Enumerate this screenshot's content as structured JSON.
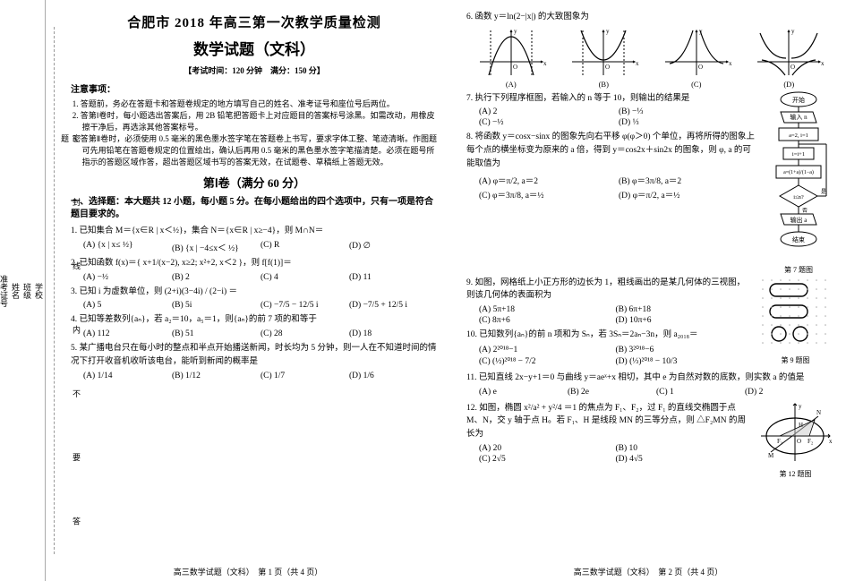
{
  "header": {
    "title_line1": "合肥市 2018 年高三第一次教学质量检测",
    "title_line2": "数学试题（文科）",
    "exam_info": "【考试时间：120 分钟　满分：150 分】"
  },
  "left_margin": {
    "fields": [
      "学校",
      "班级",
      "姓名",
      "准考证号"
    ],
    "seal_notes": [
      "密",
      "封",
      "线",
      "内",
      "不",
      "要",
      "答",
      "题"
    ]
  },
  "notice": {
    "title": "注意事项：",
    "items": [
      "1. 答题前，务必在答题卡和答题卷规定的地方填写自己的姓名、准考证号和座位号后两位。",
      "2. 答第Ⅰ卷时，每小题选出答案后，用 2B 铅笔把答题卡上对应题目的答案标号涂黑。如需改动，用橡皮擦干净后，再选涂其他答案标号。",
      "3. 答第Ⅱ卷时，必须使用 0.5 毫米的黑色墨水签字笔在答题卷上书写，要求字体工整、笔迹清晰。作图题可先用铅笔在答题卷规定的位置绘出，确认后再用 0.5 毫米的黑色墨水签字笔描清楚。必须在题号所指示的答题区域作答，超出答题区域书写的答案无效，在试题卷、草稿纸上答题无效。"
    ]
  },
  "section1": {
    "title": "第Ⅰ卷（满分 60 分）",
    "sub": "一、选择题：本大题共 12 小题，每小题 5 分。在每小题给出的四个选项中，只有一项是符合题目要求的。"
  },
  "questions_left": [
    {
      "n": "1.",
      "text": "已知集合 M＝{x∈R | x＜½}，集合 N＝{x∈R | x≥−4}，则 M∩N＝",
      "opts": [
        "(A) {x | x≤ ½}",
        "(B) {x | −4≤x＜ ½}",
        "(C) R",
        "(D) ∅"
      ],
      "cols": 4
    },
    {
      "n": "2.",
      "text": "已知函数 f(x)＝{ x+1/(x−2),  x≥2;  x²+2,  x＜2 }，则 f[f(1)]＝",
      "opts": [
        "(A) −½",
        "(B) 2",
        "(C) 4",
        "(D) 11"
      ],
      "cols": 4
    },
    {
      "n": "3.",
      "text": "已知 i 为虚数单位，则 (2+i)(3−4i) / (2−i) ＝",
      "opts": [
        "(A) 5",
        "(B) 5i",
        "(C) −7/5 − 12/5 i",
        "(D) −7/5 + 12/5 i"
      ],
      "cols": 4
    },
    {
      "n": "4.",
      "text": "已知等差数列{aₙ}，若 a₂＝10，a₅＝1，则{aₙ}的前 7 项的和等于",
      "opts": [
        "(A) 112",
        "(B) 51",
        "(C) 28",
        "(D) 18"
      ],
      "cols": 4
    },
    {
      "n": "5.",
      "text": "某广播电台只在每小时的整点和半点开始播送新闻，时长均为 5 分钟，则一人在不知道时间的情况下打开收音机收听该电台，能听到新闻的概率是",
      "opts": [
        "(A) 1/14",
        "(B) 1/12",
        "(C) 1/7",
        "(D) 1/6"
      ],
      "cols": 4
    }
  ],
  "questions_right": [
    {
      "n": "6.",
      "text": "函数 y＝ln(2−|x|) 的大致图象为",
      "graph_labels": [
        "(A)",
        "(B)",
        "(C)",
        "(D)"
      ]
    },
    {
      "n": "7.",
      "text": "执行下列程序框图，若输入的 n 等于 10，则输出的结果是",
      "opts": [
        "(A) 2",
        "(B) −⅓",
        "(C) −½",
        "(D) ⅓"
      ],
      "cols": 2,
      "flowchart": {
        "nodes": [
          "开始",
          "输入 n",
          "a＝2, i＝1",
          "i＝i+1",
          "a＝(1+a)/(1−a)",
          "i≤n?",
          "输出 a",
          "结束"
        ],
        "edges": [
          "是",
          "否"
        ]
      },
      "caption": "第 7 题图"
    },
    {
      "n": "8.",
      "text": "将函数 y＝cosx−sinx 的图象先向右平移 φ(φ＞0) 个单位，再将所得的图象上每个点的横坐标变为原来的 a 倍，得到 y＝cos2x＋sin2x 的图象，则 φ, a 的可能取值为",
      "opts": [
        "(A) φ＝π/2, a＝2",
        "(B) φ＝3π/8, a＝2",
        "(C) φ＝3π/8, a＝½",
        "(D) φ＝π/2, a＝½"
      ],
      "cols": 2
    },
    {
      "n": "9.",
      "text": "如图，网格纸上小正方形的边长为 1，粗线画出的是某几何体的三视图，则该几何体的表面积为",
      "opts": [
        "(A) 5π+18",
        "(B) 6π+18",
        "(C) 8π+6",
        "(D) 10π+6"
      ],
      "cols": 2,
      "caption": "第 9 题图"
    },
    {
      "n": "10.",
      "text": "已知数列{aₙ}的前 n 项和为 Sₙ，若 3Sₙ＝2aₙ−3n，则 a₂₀₁₈＝",
      "opts": [
        "(A) 2²⁰¹⁸−1",
        "(B) 3²⁰¹⁸−6",
        "(C) (½)²⁰¹⁸ − 7/2",
        "(D) (⅓)²⁰¹⁸ − 10/3"
      ],
      "cols": 2
    },
    {
      "n": "11.",
      "text": "已知直线 2x−y+1＝0 与曲线 y＝aeˣ+x 相切，其中 e 为自然对数的底数，则实数 a 的值是",
      "opts": [
        "(A) e",
        "(B) 2e",
        "(C) 1",
        "(D) 2"
      ],
      "cols": 4
    },
    {
      "n": "12.",
      "text": "如图，椭圆 x²/a² + y²/4 ＝1 的焦点为 F₁、F₂，过 F₁ 的直线交椭圆于点 M、N，交 y 轴于点 H。若 F₁、H 是线段 MN 的三等分点，则 △F₂MN 的周长为",
      "opts": [
        "(A) 20",
        "(B) 10",
        "(C) 2√5",
        "(D) 4√5"
      ],
      "cols": 2,
      "caption": "第 12 题图"
    }
  ],
  "footers": {
    "left": "高三数学试题（文科）　第 1 页（共 4 页）",
    "right": "高三数学试题（文科）　第 2 页（共 4 页）"
  },
  "graph_style": {
    "axis_color": "#000000",
    "curve_color": "#000000",
    "stroke_width": 1
  },
  "colors": {
    "background": "#ffffff",
    "text": "#000000",
    "dashed": "#999999"
  }
}
